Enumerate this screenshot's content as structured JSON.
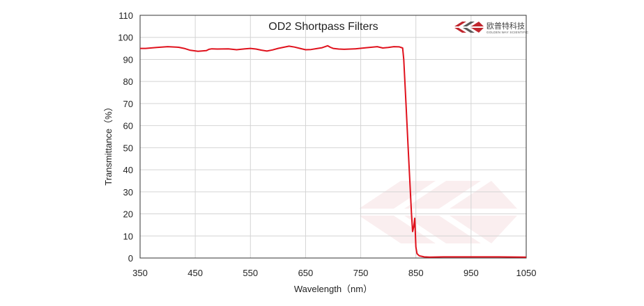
{
  "chart_data": {
    "type": "line",
    "title": "OD2  Shortpass Filters",
    "xlabel": "Wavelength（nm）",
    "ylabel": "Transmittance（%）",
    "xlim": [
      350,
      1050
    ],
    "ylim": [
      0,
      110
    ],
    "x_ticks": [
      350,
      450,
      550,
      650,
      750,
      850,
      950,
      1050
    ],
    "y_ticks": [
      0,
      10,
      20,
      30,
      40,
      50,
      60,
      70,
      80,
      90,
      100,
      110
    ],
    "grid": true,
    "line_color": "#e0111c",
    "series": [
      {
        "x": [
          350,
          360,
          380,
          400,
          420,
          430,
          440,
          455,
          470,
          475,
          480,
          490,
          510,
          525,
          540,
          550,
          560,
          570,
          580,
          590,
          600,
          610,
          620,
          630,
          640,
          650,
          660,
          670,
          680,
          690,
          695,
          700,
          710,
          720,
          740,
          760,
          780,
          790,
          800,
          810,
          820,
          826,
          828,
          832,
          836,
          840,
          842,
          844,
          846,
          848,
          850,
          852,
          856,
          860,
          865,
          875,
          900,
          950,
          1000,
          1050
        ],
        "y": [
          95,
          95,
          95.4,
          95.8,
          95.5,
          95,
          94.2,
          93.7,
          94,
          94.6,
          94.8,
          94.7,
          94.8,
          94.4,
          94.8,
          95,
          94.7,
          94.2,
          93.8,
          94.3,
          95,
          95.5,
          96,
          95.6,
          95,
          94.4,
          94.5,
          94.9,
          95.3,
          96.2,
          95.5,
          95,
          94.7,
          94.6,
          94.8,
          95.3,
          95.8,
          95.2,
          95.4,
          95.8,
          95.7,
          95.2,
          90,
          70,
          50,
          30,
          20,
          12,
          14,
          18,
          5,
          2,
          1,
          0.8,
          0.5,
          0.4,
          0.5,
          0.5,
          0.5,
          0.4
        ]
      }
    ]
  },
  "brand": {
    "name_cn": "欧普特科技",
    "name_en": "GOLDEN WAY SCIENTIFIC",
    "accent": "#c0262d",
    "dark": "#5a5a5a"
  }
}
